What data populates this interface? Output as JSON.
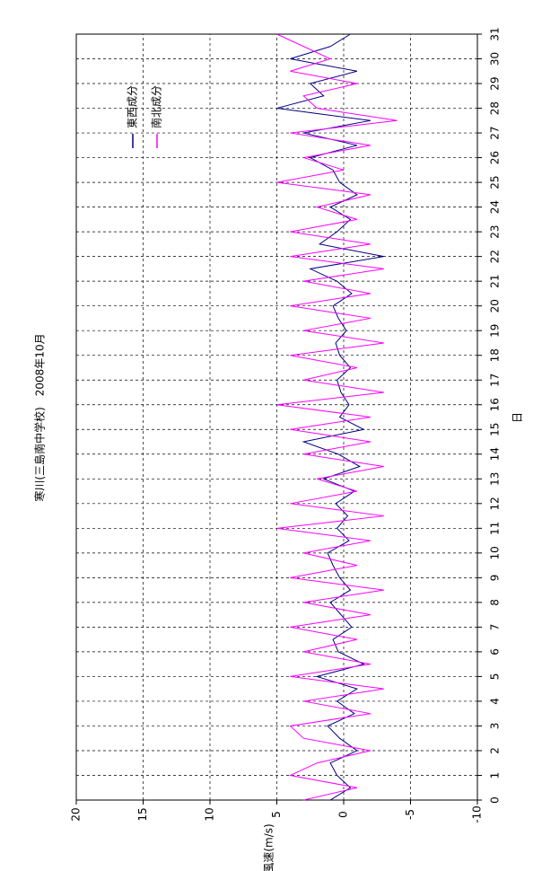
{
  "chart_data": {
    "type": "line",
    "title": "寒川(三島南中学校)　2008年10月",
    "x_label": "日",
    "y_label": "風速(m/s)",
    "x": [
      0,
      0.5,
      1,
      1.5,
      2,
      2.5,
      3,
      3.5,
      4,
      4.5,
      5,
      5.5,
      6,
      6.5,
      7,
      7.5,
      8,
      8.5,
      9,
      9.5,
      10,
      10.5,
      11,
      11.5,
      12,
      12.5,
      13,
      13.5,
      14,
      14.5,
      15,
      15.5,
      16,
      16.5,
      17,
      17.5,
      18,
      18.5,
      19,
      19.5,
      20,
      20.5,
      21,
      21.5,
      22,
      22.5,
      23,
      23.5,
      24,
      24.5,
      25,
      25.5,
      26,
      26.5,
      27,
      27.5,
      28,
      28.5,
      29,
      29.5,
      30,
      30.5,
      31
    ],
    "series": [
      {
        "name": "東西成分",
        "color": "#000080",
        "values": [
          1,
          -0.5,
          0.5,
          1,
          -1,
          0.3,
          1.2,
          -0.8,
          0.5,
          -1,
          2,
          -1.5,
          0.4,
          0.8,
          -0.6,
          0.2,
          1,
          -0.5,
          0.3,
          0.8,
          1.2,
          -0.4,
          0.5,
          -0.3,
          0.6,
          -0.8,
          1.5,
          -1.2,
          0.4,
          3,
          -1.5,
          0.3,
          -0.4,
          0.2,
          0.5,
          -0.5,
          0.3,
          0.6,
          -0.2,
          0.4,
          0.8,
          -0.6,
          0.5,
          2.5,
          -3,
          1.8,
          0.5,
          -0.5,
          1,
          -1,
          0.3,
          0.8,
          2.5,
          -1,
          3,
          -2,
          5,
          1.5,
          2.5,
          -1,
          4,
          1,
          -0.5
        ]
      },
      {
        "name": "南北成分",
        "color": "#ff00ff",
        "values": [
          3,
          -1,
          4,
          2,
          -2,
          3,
          4,
          -2,
          3,
          -3,
          4,
          -2,
          3,
          -1,
          4,
          -2,
          3,
          -3,
          4,
          -1,
          3,
          -2,
          5,
          -3,
          4,
          -1,
          2,
          -3,
          3,
          -2,
          4,
          -2,
          5,
          -3,
          3,
          -1,
          4,
          -3,
          3,
          -2,
          4,
          -2,
          3,
          -3,
          4,
          -2,
          4,
          -1,
          2,
          -2,
          5,
          0,
          3,
          -2,
          4,
          -4,
          2,
          3,
          -1,
          4,
          1,
          3,
          5
        ]
      }
    ],
    "xlim": [
      0,
      31
    ],
    "xticks": [
      0,
      1,
      2,
      3,
      4,
      5,
      6,
      7,
      8,
      9,
      10,
      11,
      12,
      13,
      14,
      15,
      16,
      17,
      18,
      19,
      20,
      21,
      22,
      23,
      24,
      25,
      26,
      27,
      28,
      29,
      30,
      31
    ],
    "ylim": [
      -10,
      20
    ],
    "yticks": [
      -10,
      -5,
      0,
      5,
      10,
      15,
      20
    ],
    "grid": true
  }
}
